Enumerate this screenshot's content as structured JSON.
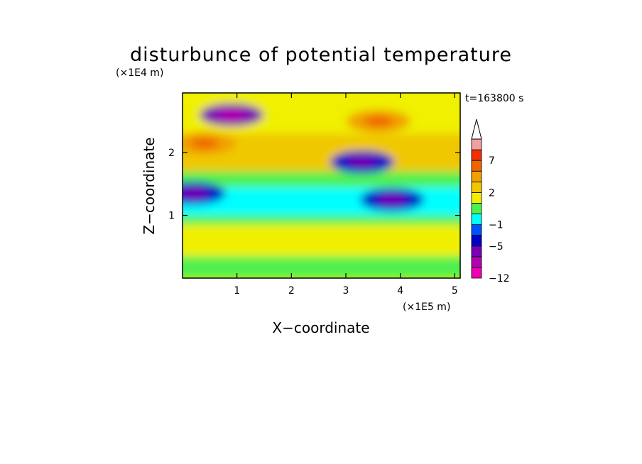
{
  "chart_data": {
    "type": "heatmap",
    "title": "disturbunce of potential temperature",
    "xlabel": "X−coordinate",
    "ylabel": "Z−coordinate",
    "x_unit": "(×1E5 m)",
    "y_unit": "(×1E4 m)",
    "time_label": "t=163800 s",
    "xlim": [
      0,
      5.1
    ],
    "ylim": [
      0,
      2.95
    ],
    "x_ticks": [
      1,
      2,
      3,
      4,
      5
    ],
    "y_ticks": [
      1,
      2
    ],
    "colorbar": {
      "levels": [
        -12,
        -9,
        -7,
        -5,
        -3,
        -1,
        0,
        1,
        2,
        3,
        5,
        7,
        9,
        11
      ],
      "labeled": [
        {
          "value": -12,
          "text": "−12"
        },
        {
          "value": -5,
          "text": "−5"
        },
        {
          "value": -1,
          "text": "−1"
        },
        {
          "value": 2,
          "text": "2"
        },
        {
          "value": 7,
          "text": "7"
        }
      ],
      "colors": [
        "#f000b4",
        "#b400b4",
        "#7800b4",
        "#0000c8",
        "#0050ff",
        "#00ffff",
        "#50f050",
        "#f0f000",
        "#f0c800",
        "#f0a000",
        "#f06400",
        "#f03000",
        "#f0a0a0"
      ],
      "extend_top_color": "#ffffff"
    },
    "approx_field": {
      "layers": [
        {
          "z_range": [
            0.0,
            0.35
          ],
          "value": 0.5
        },
        {
          "z_range": [
            0.35,
            0.85
          ],
          "value": 1.5
        },
        {
          "z_range": [
            0.85,
            1.0
          ],
          "value": 0.5
        },
        {
          "z_range": [
            1.0,
            1.45
          ],
          "value": -0.5
        },
        {
          "z_range": [
            1.45,
            1.7
          ],
          "value": 0.5
        },
        {
          "z_range": [
            1.7,
            2.3
          ],
          "value": 2.0
        },
        {
          "z_range": [
            2.3,
            2.95
          ],
          "value": 1.0
        }
      ],
      "features": [
        {
          "x": 0.9,
          "z": 2.6,
          "value": -6,
          "note": "negative core upper left"
        },
        {
          "x": 3.6,
          "z": 2.5,
          "value": 4,
          "note": "positive core upper middle"
        },
        {
          "x": 3.3,
          "z": 1.85,
          "value": -4,
          "note": "negative band mid-right"
        },
        {
          "x": 0.4,
          "z": 2.15,
          "value": 4,
          "note": "positive patch left"
        },
        {
          "x": 3.85,
          "z": 1.25,
          "value": -5,
          "note": "negative patch right"
        },
        {
          "x": 0.2,
          "z": 1.35,
          "value": -4,
          "note": "negative patch left"
        }
      ]
    }
  }
}
